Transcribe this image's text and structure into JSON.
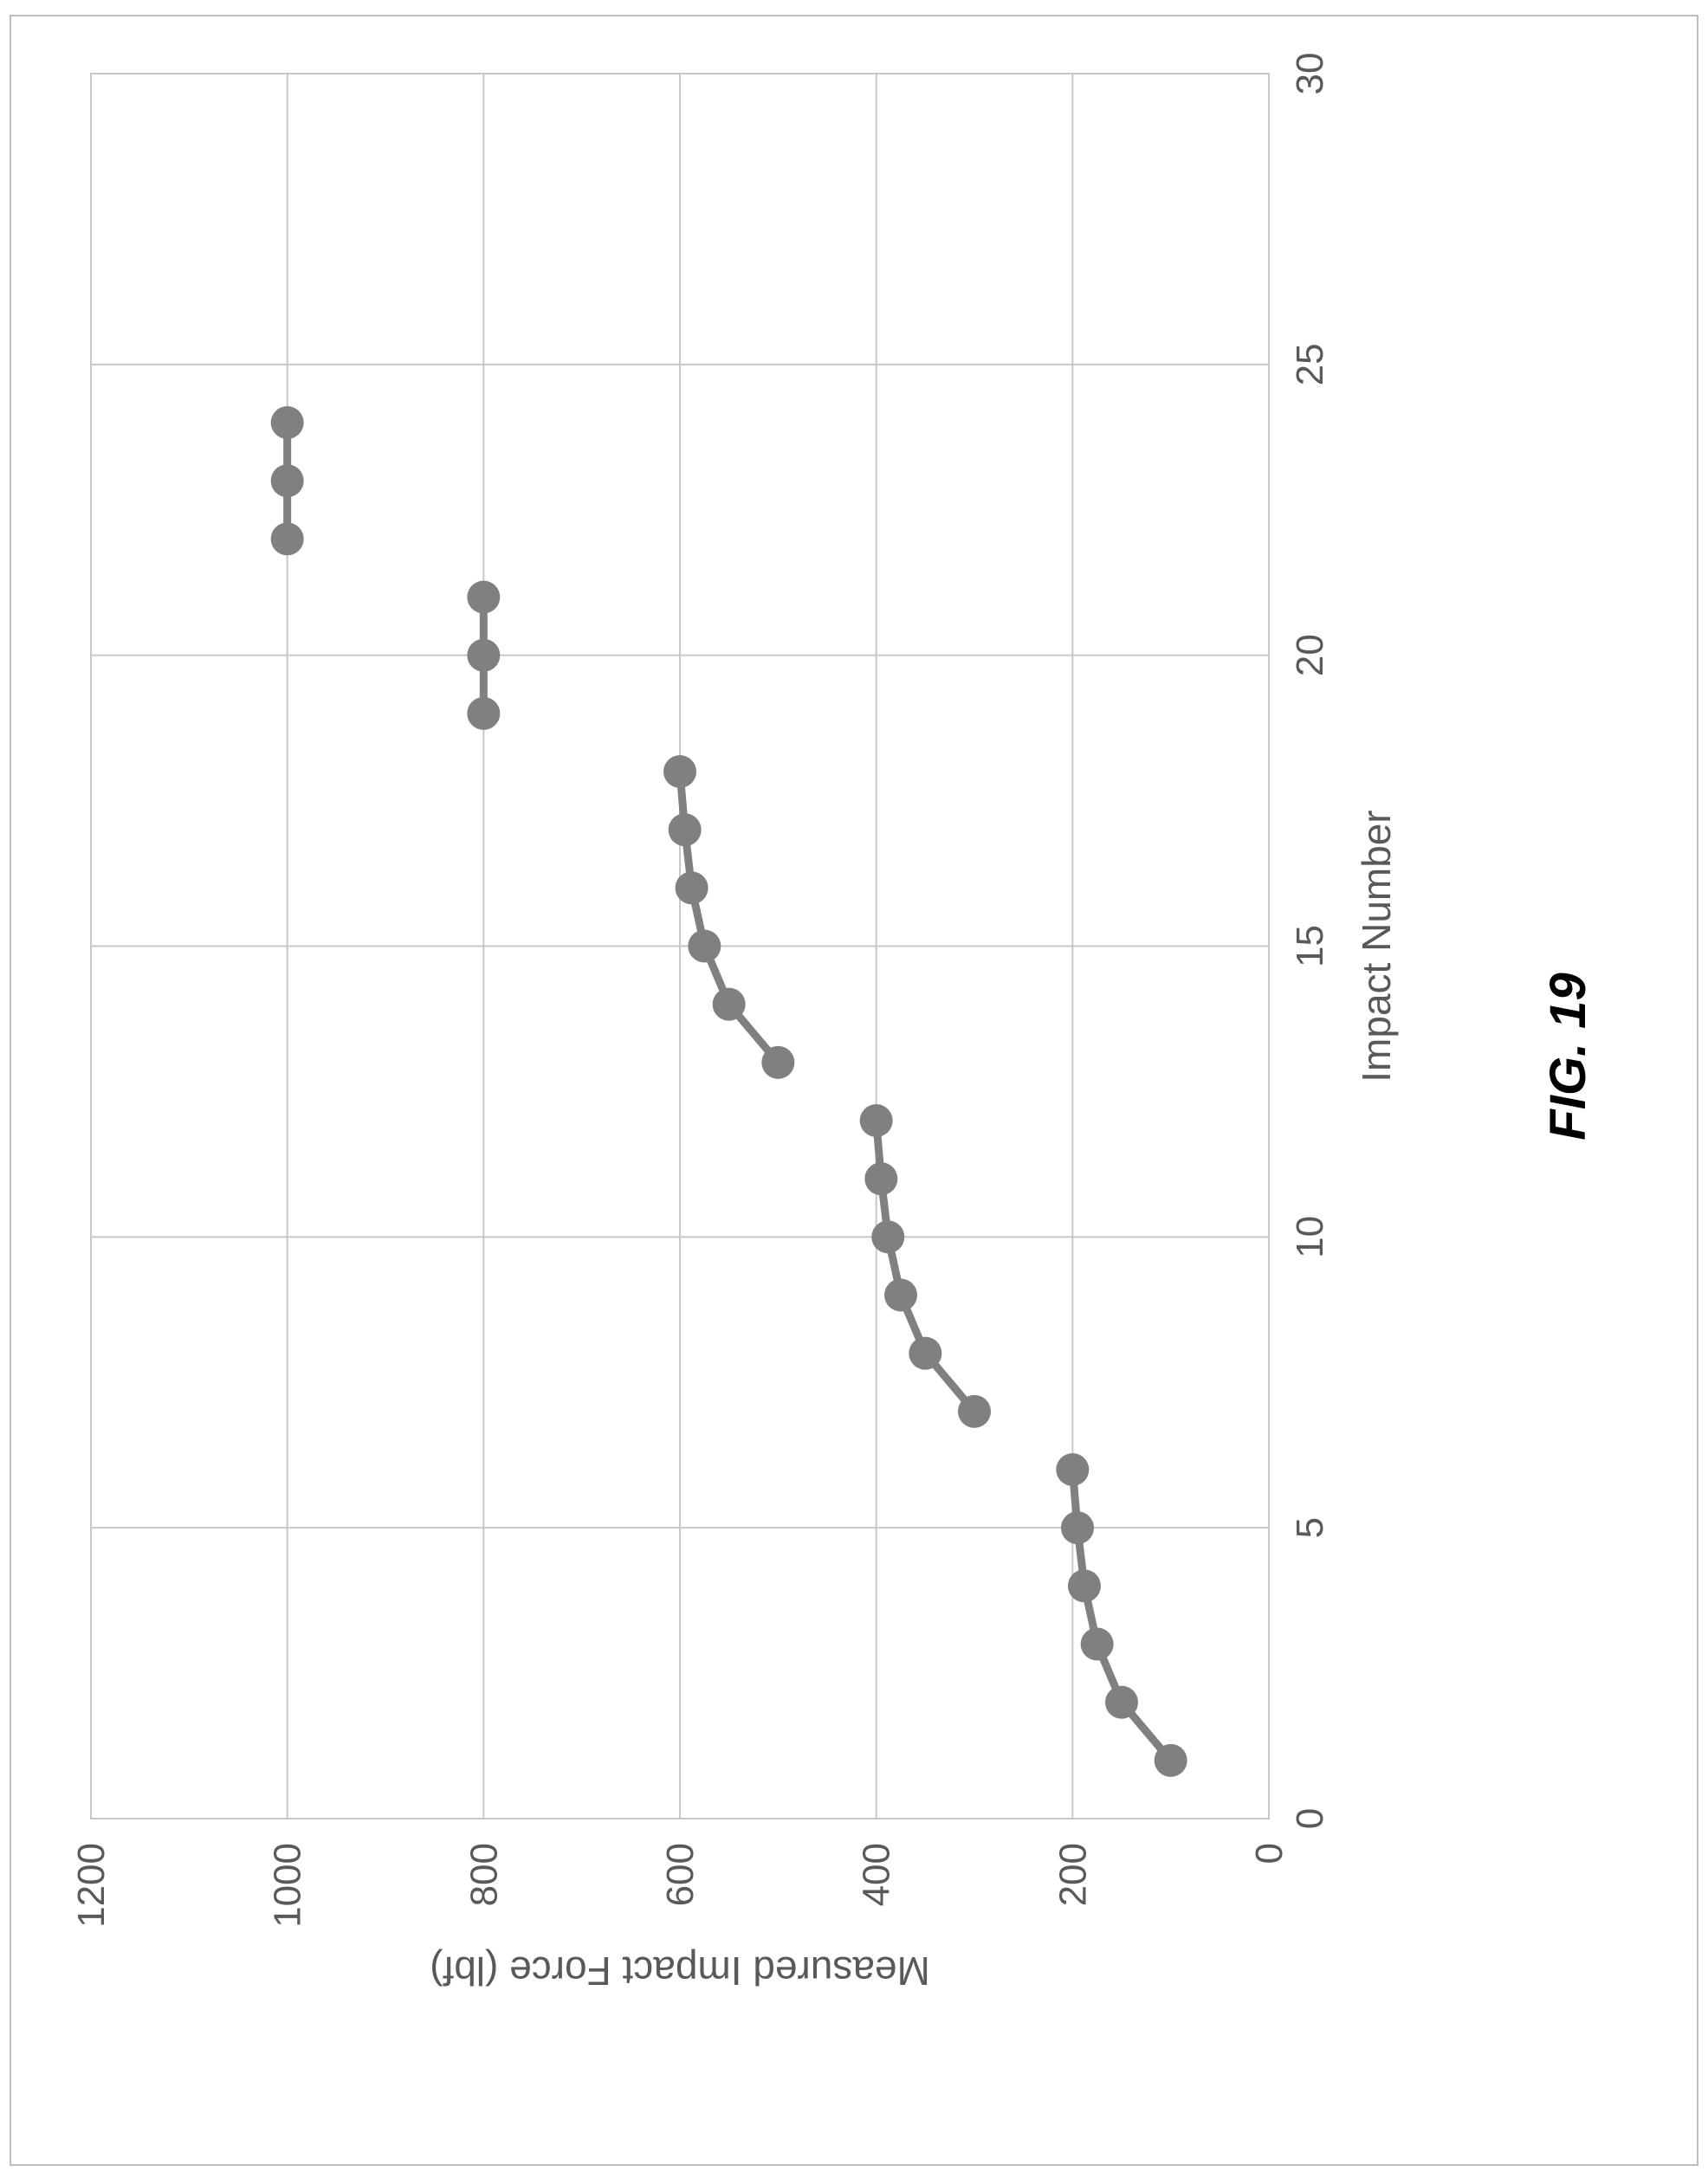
{
  "figure_label": "FIG. 19",
  "colors": {
    "series": "#808080",
    "grid": "#c8c8c8",
    "axis_text": "#595959",
    "figure_label": "#000000",
    "frame": "#bdbdbd"
  },
  "chart_data": {
    "type": "line",
    "orientation": "rotated-90-ccw",
    "title": "",
    "xlabel": "Impact Number",
    "ylabel": "Measured Impact Force (lbf)",
    "xlim": [
      0,
      30
    ],
    "ylim": [
      0,
      1200
    ],
    "x_ticks": [
      "0",
      "5",
      "10",
      "15",
      "20",
      "25",
      "30"
    ],
    "y_ticks": [
      "0",
      "200",
      "400",
      "600",
      "800",
      "1000",
      "1200"
    ],
    "grid": true,
    "legend": false,
    "series": [
      {
        "segments": [
          [
            [
              1,
              100
            ],
            [
              2,
              150
            ],
            [
              3,
              175
            ],
            [
              4,
              188
            ],
            [
              5,
              195
            ],
            [
              6,
              200
            ]
          ],
          [
            [
              7,
              300
            ],
            [
              8,
              350
            ],
            [
              9,
              375
            ],
            [
              10,
              388
            ],
            [
              11,
              395
            ],
            [
              12,
              400
            ]
          ],
          [
            [
              13,
              500
            ],
            [
              14,
              550
            ],
            [
              15,
              575
            ],
            [
              16,
              588
            ],
            [
              17,
              595
            ],
            [
              18,
              600
            ]
          ],
          [
            [
              19,
              800
            ],
            [
              20,
              800
            ],
            [
              21,
              800
            ]
          ],
          [
            [
              22,
              1000
            ],
            [
              23,
              1000
            ],
            [
              24,
              1000
            ]
          ]
        ]
      }
    ]
  }
}
